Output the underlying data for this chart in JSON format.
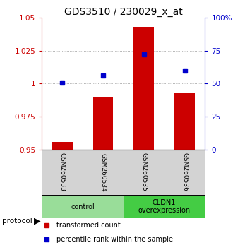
{
  "title": "GDS3510 / 230029_x_at",
  "samples": [
    "GSM260533",
    "GSM260534",
    "GSM260535",
    "GSM260536"
  ],
  "transformed_counts": [
    0.956,
    0.99,
    1.043,
    0.993
  ],
  "percentile_ranks": [
    51,
    56,
    72,
    60
  ],
  "ylim_left": [
    0.95,
    1.05
  ],
  "ylim_right": [
    0,
    100
  ],
  "yticks_left": [
    0.95,
    0.975,
    1.0,
    1.025,
    1.05
  ],
  "ytick_labels_left": [
    "0.95",
    "0.975",
    "1",
    "1.025",
    "1.05"
  ],
  "yticks_right": [
    0,
    25,
    50,
    75,
    100
  ],
  "ytick_labels_right": [
    "0",
    "25",
    "50",
    "75",
    "100%"
  ],
  "bar_color": "#cc0000",
  "marker_color": "#0000cc",
  "bar_width": 0.5,
  "baseline": 0.95,
  "groups": [
    {
      "label": "control",
      "samples": [
        0,
        1
      ],
      "color": "#99dd99"
    },
    {
      "label": "CLDN1\noverexpression",
      "samples": [
        2,
        3
      ],
      "color": "#44cc44"
    }
  ],
  "protocol_label": "protocol",
  "legend_bar_label": "transformed count",
  "legend_marker_label": "percentile rank within the sample",
  "title_fontsize": 10,
  "tick_fontsize": 7.5,
  "sample_fontsize": 6.5,
  "group_fontsize": 7,
  "legend_fontsize": 7
}
